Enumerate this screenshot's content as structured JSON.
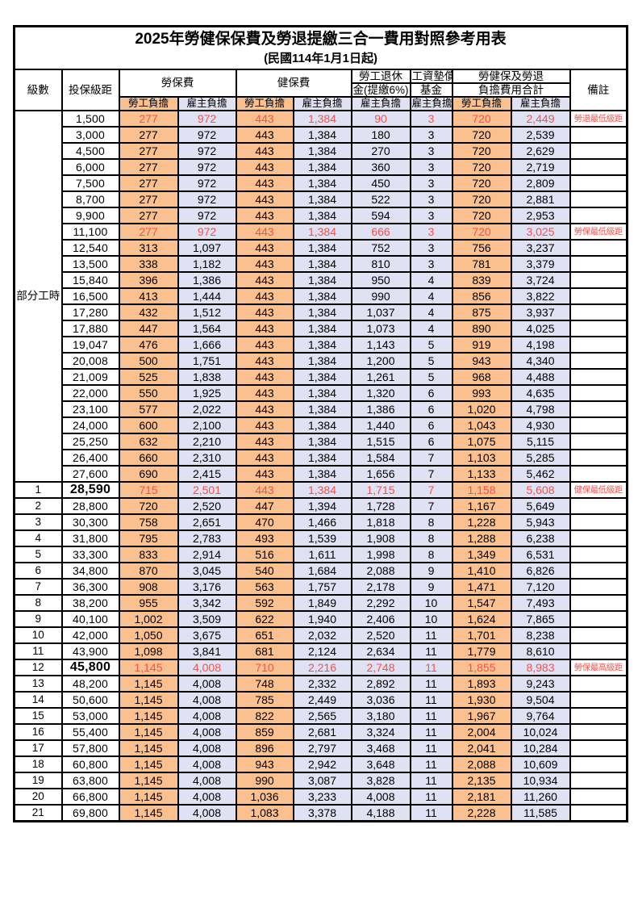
{
  "title": "2025年勞健保保費及勞退提繳三合一費用對照參考用表",
  "subtitle": "(民國114年1月1日起)",
  "header": {
    "level": "級數",
    "bracket": "投保級距",
    "labor_insurance": "勞保費",
    "health_insurance": "健保費",
    "pension_line1": "勞工退休",
    "pension_line2": "金(提繳6%)",
    "wage_fund_line1": "工資墊償",
    "wage_fund_line2": "基金",
    "total_line1": "勞健保及勞退",
    "total_line2": "負擔費用合計",
    "remarks": "備註",
    "employee": "勞工負擔",
    "employer": "雇主負擔"
  },
  "part_time": {
    "label": "部分工時",
    "row_count": 23
  },
  "colors": {
    "employee_bg": "#FAC090",
    "employer_bg": "#E0E1F2",
    "highlight_text": "#F4524E",
    "border": "#000000"
  },
  "rows": [
    {
      "level": "",
      "bracket": "1,500",
      "li_emp": "277",
      "li_er": "972",
      "hi_emp": "443",
      "hi_er": "1,384",
      "pension": "90",
      "fund": "3",
      "tot_emp": "720",
      "tot_er": "2,449",
      "remark": "勞退最低級距",
      "red": true,
      "big": false
    },
    {
      "level": "",
      "bracket": "3,000",
      "li_emp": "277",
      "li_er": "972",
      "hi_emp": "443",
      "hi_er": "1,384",
      "pension": "180",
      "fund": "3",
      "tot_emp": "720",
      "tot_er": "2,539",
      "remark": "",
      "red": false,
      "big": false
    },
    {
      "level": "",
      "bracket": "4,500",
      "li_emp": "277",
      "li_er": "972",
      "hi_emp": "443",
      "hi_er": "1,384",
      "pension": "270",
      "fund": "3",
      "tot_emp": "720",
      "tot_er": "2,629",
      "remark": "",
      "red": false,
      "big": false
    },
    {
      "level": "",
      "bracket": "6,000",
      "li_emp": "277",
      "li_er": "972",
      "hi_emp": "443",
      "hi_er": "1,384",
      "pension": "360",
      "fund": "3",
      "tot_emp": "720",
      "tot_er": "2,719",
      "remark": "",
      "red": false,
      "big": false
    },
    {
      "level": "",
      "bracket": "7,500",
      "li_emp": "277",
      "li_er": "972",
      "hi_emp": "443",
      "hi_er": "1,384",
      "pension": "450",
      "fund": "3",
      "tot_emp": "720",
      "tot_er": "2,809",
      "remark": "",
      "red": false,
      "big": false
    },
    {
      "level": "",
      "bracket": "8,700",
      "li_emp": "277",
      "li_er": "972",
      "hi_emp": "443",
      "hi_er": "1,384",
      "pension": "522",
      "fund": "3",
      "tot_emp": "720",
      "tot_er": "2,881",
      "remark": "",
      "red": false,
      "big": false
    },
    {
      "level": "",
      "bracket": "9,900",
      "li_emp": "277",
      "li_er": "972",
      "hi_emp": "443",
      "hi_er": "1,384",
      "pension": "594",
      "fund": "3",
      "tot_emp": "720",
      "tot_er": "2,953",
      "remark": "",
      "red": false,
      "big": false
    },
    {
      "level": "",
      "bracket": "11,100",
      "li_emp": "277",
      "li_er": "972",
      "hi_emp": "443",
      "hi_er": "1,384",
      "pension": "666",
      "fund": "3",
      "tot_emp": "720",
      "tot_er": "3,025",
      "remark": "勞保最低級距",
      "red": true,
      "big": false
    },
    {
      "level": "",
      "bracket": "12,540",
      "li_emp": "313",
      "li_er": "1,097",
      "hi_emp": "443",
      "hi_er": "1,384",
      "pension": "752",
      "fund": "3",
      "tot_emp": "756",
      "tot_er": "3,237",
      "remark": "",
      "red": false,
      "big": false
    },
    {
      "level": "",
      "bracket": "13,500",
      "li_emp": "338",
      "li_er": "1,182",
      "hi_emp": "443",
      "hi_er": "1,384",
      "pension": "810",
      "fund": "3",
      "tot_emp": "781",
      "tot_er": "3,379",
      "remark": "",
      "red": false,
      "big": false
    },
    {
      "level": "",
      "bracket": "15,840",
      "li_emp": "396",
      "li_er": "1,386",
      "hi_emp": "443",
      "hi_er": "1,384",
      "pension": "950",
      "fund": "4",
      "tot_emp": "839",
      "tot_er": "3,724",
      "remark": "",
      "red": false,
      "big": false
    },
    {
      "level": "",
      "bracket": "16,500",
      "li_emp": "413",
      "li_er": "1,444",
      "hi_emp": "443",
      "hi_er": "1,384",
      "pension": "990",
      "fund": "4",
      "tot_emp": "856",
      "tot_er": "3,822",
      "remark": "",
      "red": false,
      "big": false
    },
    {
      "level": "",
      "bracket": "17,280",
      "li_emp": "432",
      "li_er": "1,512",
      "hi_emp": "443",
      "hi_er": "1,384",
      "pension": "1,037",
      "fund": "4",
      "tot_emp": "875",
      "tot_er": "3,937",
      "remark": "",
      "red": false,
      "big": false
    },
    {
      "level": "",
      "bracket": "17,880",
      "li_emp": "447",
      "li_er": "1,564",
      "hi_emp": "443",
      "hi_er": "1,384",
      "pension": "1,073",
      "fund": "4",
      "tot_emp": "890",
      "tot_er": "4,025",
      "remark": "",
      "red": false,
      "big": false
    },
    {
      "level": "",
      "bracket": "19,047",
      "li_emp": "476",
      "li_er": "1,666",
      "hi_emp": "443",
      "hi_er": "1,384",
      "pension": "1,143",
      "fund": "5",
      "tot_emp": "919",
      "tot_er": "4,198",
      "remark": "",
      "red": false,
      "big": false
    },
    {
      "level": "",
      "bracket": "20,008",
      "li_emp": "500",
      "li_er": "1,751",
      "hi_emp": "443",
      "hi_er": "1,384",
      "pension": "1,200",
      "fund": "5",
      "tot_emp": "943",
      "tot_er": "4,340",
      "remark": "",
      "red": false,
      "big": false
    },
    {
      "level": "",
      "bracket": "21,009",
      "li_emp": "525",
      "li_er": "1,838",
      "hi_emp": "443",
      "hi_er": "1,384",
      "pension": "1,261",
      "fund": "5",
      "tot_emp": "968",
      "tot_er": "4,488",
      "remark": "",
      "red": false,
      "big": false
    },
    {
      "level": "",
      "bracket": "22,000",
      "li_emp": "550",
      "li_er": "1,925",
      "hi_emp": "443",
      "hi_er": "1,384",
      "pension": "1,320",
      "fund": "6",
      "tot_emp": "993",
      "tot_er": "4,635",
      "remark": "",
      "red": false,
      "big": false
    },
    {
      "level": "",
      "bracket": "23,100",
      "li_emp": "577",
      "li_er": "2,022",
      "hi_emp": "443",
      "hi_er": "1,384",
      "pension": "1,386",
      "fund": "6",
      "tot_emp": "1,020",
      "tot_er": "4,798",
      "remark": "",
      "red": false,
      "big": false
    },
    {
      "level": "",
      "bracket": "24,000",
      "li_emp": "600",
      "li_er": "2,100",
      "hi_emp": "443",
      "hi_er": "1,384",
      "pension": "1,440",
      "fund": "6",
      "tot_emp": "1,043",
      "tot_er": "4,930",
      "remark": "",
      "red": false,
      "big": false
    },
    {
      "level": "",
      "bracket": "25,250",
      "li_emp": "632",
      "li_er": "2,210",
      "hi_emp": "443",
      "hi_er": "1,384",
      "pension": "1,515",
      "fund": "6",
      "tot_emp": "1,075",
      "tot_er": "5,115",
      "remark": "",
      "red": false,
      "big": false
    },
    {
      "level": "",
      "bracket": "26,400",
      "li_emp": "660",
      "li_er": "2,310",
      "hi_emp": "443",
      "hi_er": "1,384",
      "pension": "1,584",
      "fund": "7",
      "tot_emp": "1,103",
      "tot_er": "5,285",
      "remark": "",
      "red": false,
      "big": false
    },
    {
      "level": "",
      "bracket": "27,600",
      "li_emp": "690",
      "li_er": "2,415",
      "hi_emp": "443",
      "hi_er": "1,384",
      "pension": "1,656",
      "fund": "7",
      "tot_emp": "1,133",
      "tot_er": "5,462",
      "remark": "",
      "red": false,
      "big": false
    },
    {
      "level": "1",
      "bracket": "28,590",
      "li_emp": "715",
      "li_er": "2,501",
      "hi_emp": "443",
      "hi_er": "1,384",
      "pension": "1,715",
      "fund": "7",
      "tot_emp": "1,158",
      "tot_er": "5,608",
      "remark": "健保最低級距",
      "red": true,
      "big": true
    },
    {
      "level": "2",
      "bracket": "28,800",
      "li_emp": "720",
      "li_er": "2,520",
      "hi_emp": "447",
      "hi_er": "1,394",
      "pension": "1,728",
      "fund": "7",
      "tot_emp": "1,167",
      "tot_er": "5,649",
      "remark": "",
      "red": false,
      "big": false
    },
    {
      "level": "3",
      "bracket": "30,300",
      "li_emp": "758",
      "li_er": "2,651",
      "hi_emp": "470",
      "hi_er": "1,466",
      "pension": "1,818",
      "fund": "8",
      "tot_emp": "1,228",
      "tot_er": "5,943",
      "remark": "",
      "red": false,
      "big": false
    },
    {
      "level": "4",
      "bracket": "31,800",
      "li_emp": "795",
      "li_er": "2,783",
      "hi_emp": "493",
      "hi_er": "1,539",
      "pension": "1,908",
      "fund": "8",
      "tot_emp": "1,288",
      "tot_er": "6,238",
      "remark": "",
      "red": false,
      "big": false
    },
    {
      "level": "5",
      "bracket": "33,300",
      "li_emp": "833",
      "li_er": "2,914",
      "hi_emp": "516",
      "hi_er": "1,611",
      "pension": "1,998",
      "fund": "8",
      "tot_emp": "1,349",
      "tot_er": "6,531",
      "remark": "",
      "red": false,
      "big": false
    },
    {
      "level": "6",
      "bracket": "34,800",
      "li_emp": "870",
      "li_er": "3,045",
      "hi_emp": "540",
      "hi_er": "1,684",
      "pension": "2,088",
      "fund": "9",
      "tot_emp": "1,410",
      "tot_er": "6,826",
      "remark": "",
      "red": false,
      "big": false
    },
    {
      "level": "7",
      "bracket": "36,300",
      "li_emp": "908",
      "li_er": "3,176",
      "hi_emp": "563",
      "hi_er": "1,757",
      "pension": "2,178",
      "fund": "9",
      "tot_emp": "1,471",
      "tot_er": "7,120",
      "remark": "",
      "red": false,
      "big": false
    },
    {
      "level": "8",
      "bracket": "38,200",
      "li_emp": "955",
      "li_er": "3,342",
      "hi_emp": "592",
      "hi_er": "1,849",
      "pension": "2,292",
      "fund": "10",
      "tot_emp": "1,547",
      "tot_er": "7,493",
      "remark": "",
      "red": false,
      "big": false
    },
    {
      "level": "9",
      "bracket": "40,100",
      "li_emp": "1,002",
      "li_er": "3,509",
      "hi_emp": "622",
      "hi_er": "1,940",
      "pension": "2,406",
      "fund": "10",
      "tot_emp": "1,624",
      "tot_er": "7,865",
      "remark": "",
      "red": false,
      "big": false
    },
    {
      "level": "10",
      "bracket": "42,000",
      "li_emp": "1,050",
      "li_er": "3,675",
      "hi_emp": "651",
      "hi_er": "2,032",
      "pension": "2,520",
      "fund": "11",
      "tot_emp": "1,701",
      "tot_er": "8,238",
      "remark": "",
      "red": false,
      "big": false
    },
    {
      "level": "11",
      "bracket": "43,900",
      "li_emp": "1,098",
      "li_er": "3,841",
      "hi_emp": "681",
      "hi_er": "2,124",
      "pension": "2,634",
      "fund": "11",
      "tot_emp": "1,779",
      "tot_er": "8,610",
      "remark": "",
      "red": false,
      "big": false
    },
    {
      "level": "12",
      "bracket": "45,800",
      "li_emp": "1,145",
      "li_er": "4,008",
      "hi_emp": "710",
      "hi_er": "2,216",
      "pension": "2,748",
      "fund": "11",
      "tot_emp": "1,855",
      "tot_er": "8,983",
      "remark": "勞保最高級距",
      "red": true,
      "big": true
    },
    {
      "level": "13",
      "bracket": "48,200",
      "li_emp": "1,145",
      "li_er": "4,008",
      "hi_emp": "748",
      "hi_er": "2,332",
      "pension": "2,892",
      "fund": "11",
      "tot_emp": "1,893",
      "tot_er": "9,243",
      "remark": "",
      "red": false,
      "big": false
    },
    {
      "level": "14",
      "bracket": "50,600",
      "li_emp": "1,145",
      "li_er": "4,008",
      "hi_emp": "785",
      "hi_er": "2,449",
      "pension": "3,036",
      "fund": "11",
      "tot_emp": "1,930",
      "tot_er": "9,504",
      "remark": "",
      "red": false,
      "big": false
    },
    {
      "level": "15",
      "bracket": "53,000",
      "li_emp": "1,145",
      "li_er": "4,008",
      "hi_emp": "822",
      "hi_er": "2,565",
      "pension": "3,180",
      "fund": "11",
      "tot_emp": "1,967",
      "tot_er": "9,764",
      "remark": "",
      "red": false,
      "big": false
    },
    {
      "level": "16",
      "bracket": "55,400",
      "li_emp": "1,145",
      "li_er": "4,008",
      "hi_emp": "859",
      "hi_er": "2,681",
      "pension": "3,324",
      "fund": "11",
      "tot_emp": "2,004",
      "tot_er": "10,024",
      "remark": "",
      "red": false,
      "big": false
    },
    {
      "level": "17",
      "bracket": "57,800",
      "li_emp": "1,145",
      "li_er": "4,008",
      "hi_emp": "896",
      "hi_er": "2,797",
      "pension": "3,468",
      "fund": "11",
      "tot_emp": "2,041",
      "tot_er": "10,284",
      "remark": "",
      "red": false,
      "big": false
    },
    {
      "level": "18",
      "bracket": "60,800",
      "li_emp": "1,145",
      "li_er": "4,008",
      "hi_emp": "943",
      "hi_er": "2,942",
      "pension": "3,648",
      "fund": "11",
      "tot_emp": "2,088",
      "tot_er": "10,609",
      "remark": "",
      "red": false,
      "big": false
    },
    {
      "level": "19",
      "bracket": "63,800",
      "li_emp": "1,145",
      "li_er": "4,008",
      "hi_emp": "990",
      "hi_er": "3,087",
      "pension": "3,828",
      "fund": "11",
      "tot_emp": "2,135",
      "tot_er": "10,934",
      "remark": "",
      "red": false,
      "big": false
    },
    {
      "level": "20",
      "bracket": "66,800",
      "li_emp": "1,145",
      "li_er": "4,008",
      "hi_emp": "1,036",
      "hi_er": "3,233",
      "pension": "4,008",
      "fund": "11",
      "tot_emp": "2,181",
      "tot_er": "11,260",
      "remark": "",
      "red": false,
      "big": false
    },
    {
      "level": "21",
      "bracket": "69,800",
      "li_emp": "1,145",
      "li_er": "4,008",
      "hi_emp": "1,083",
      "hi_er": "3,378",
      "pension": "4,188",
      "fund": "11",
      "tot_emp": "2,228",
      "tot_er": "11,585",
      "remark": "",
      "red": false,
      "big": false
    }
  ]
}
